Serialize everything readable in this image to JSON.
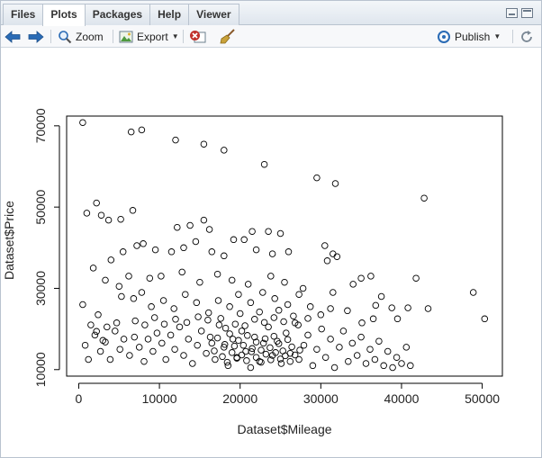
{
  "tabs": [
    {
      "label": "Files",
      "active": false
    },
    {
      "label": "Plots",
      "active": true
    },
    {
      "label": "Packages",
      "active": false
    },
    {
      "label": "Help",
      "active": false
    },
    {
      "label": "Viewer",
      "active": false
    }
  ],
  "toolbar": {
    "zoom_label": "Zoom",
    "export_label": "Export",
    "publish_label": "Publish"
  },
  "colors": {
    "accent": "#2a6bb5",
    "clear": "#c0312b",
    "broom": "#c9a23a"
  },
  "chart_data": {
    "type": "scatter",
    "xlabel": "Dataset$Mileage",
    "ylabel": "Dataset$Price",
    "xlim": [
      -1500,
      52500
    ],
    "ylim": [
      8400,
      72400
    ],
    "x_ticks": [
      0,
      10000,
      20000,
      30000,
      40000,
      50000
    ],
    "y_ticks": [
      10000,
      30000,
      50000,
      70000
    ],
    "marker": "open-circle",
    "grid": false,
    "points": [
      [
        500,
        70800
      ],
      [
        6500,
        68500
      ],
      [
        7800,
        69000
      ],
      [
        12000,
        66500
      ],
      [
        15500,
        65500
      ],
      [
        18000,
        64000
      ],
      [
        23000,
        60500
      ],
      [
        29500,
        57200
      ],
      [
        31800,
        55800
      ],
      [
        42800,
        52200
      ],
      [
        1000,
        48500
      ],
      [
        2200,
        51000
      ],
      [
        2800,
        48000
      ],
      [
        3700,
        46800
      ],
      [
        5200,
        47000
      ],
      [
        6700,
        49200
      ],
      [
        12200,
        45000
      ],
      [
        13800,
        45500
      ],
      [
        15500,
        46800
      ],
      [
        16200,
        44500
      ],
      [
        19200,
        42000
      ],
      [
        20500,
        42000
      ],
      [
        21500,
        44000
      ],
      [
        23500,
        44000
      ],
      [
        25000,
        43500
      ],
      [
        1800,
        35000
      ],
      [
        4000,
        37000
      ],
      [
        5500,
        39000
      ],
      [
        7200,
        40500
      ],
      [
        8000,
        41000
      ],
      [
        9500,
        39500
      ],
      [
        11500,
        39000
      ],
      [
        13000,
        40000
      ],
      [
        14500,
        41500
      ],
      [
        16500,
        39000
      ],
      [
        18000,
        38000
      ],
      [
        22000,
        39500
      ],
      [
        24000,
        38500
      ],
      [
        26000,
        39000
      ],
      [
        30500,
        40500
      ],
      [
        31500,
        38500
      ],
      [
        32000,
        37800
      ],
      [
        30800,
        36800
      ],
      [
        3300,
        32000
      ],
      [
        5000,
        30500
      ],
      [
        6200,
        33000
      ],
      [
        8800,
        32500
      ],
      [
        10200,
        33000
      ],
      [
        12800,
        34000
      ],
      [
        15000,
        31500
      ],
      [
        17200,
        33500
      ],
      [
        19000,
        32000
      ],
      [
        21000,
        31000
      ],
      [
        23800,
        33000
      ],
      [
        25500,
        31500
      ],
      [
        27800,
        30000
      ],
      [
        31500,
        29000
      ],
      [
        34000,
        31000
      ],
      [
        35000,
        32500
      ],
      [
        36200,
        33000
      ],
      [
        37500,
        28000
      ],
      [
        41800,
        32500
      ],
      [
        48900,
        29000
      ],
      [
        50300,
        22500
      ],
      [
        36800,
        25800
      ],
      [
        38800,
        25200
      ],
      [
        40800,
        25200
      ],
      [
        43300,
        25000
      ],
      [
        39500,
        22500
      ],
      [
        500,
        26000
      ],
      [
        1500,
        21000
      ],
      [
        2400,
        23500
      ],
      [
        3500,
        20500
      ],
      [
        4700,
        21500
      ],
      [
        5300,
        28000
      ],
      [
        6800,
        27500
      ],
      [
        7800,
        29000
      ],
      [
        9000,
        25500
      ],
      [
        10500,
        27000
      ],
      [
        11800,
        25000
      ],
      [
        13200,
        28500
      ],
      [
        14600,
        26500
      ],
      [
        16100,
        24000
      ],
      [
        17300,
        27000
      ],
      [
        18700,
        25500
      ],
      [
        19800,
        28500
      ],
      [
        21300,
        26500
      ],
      [
        22800,
        29000
      ],
      [
        24300,
        27500
      ],
      [
        25900,
        26000
      ],
      [
        27300,
        28500
      ],
      [
        28700,
        25500
      ],
      [
        30000,
        23500
      ],
      [
        31200,
        25000
      ],
      [
        33300,
        24500
      ],
      [
        35100,
        21500
      ],
      [
        36500,
        22500
      ],
      [
        800,
        16000
      ],
      [
        1200,
        12500
      ],
      [
        2000,
        18500
      ],
      [
        2700,
        14500
      ],
      [
        3300,
        16800
      ],
      [
        3900,
        12500
      ],
      [
        4500,
        19500
      ],
      [
        5100,
        15000
      ],
      [
        5600,
        17500
      ],
      [
        6300,
        13500
      ],
      [
        6900,
        18000
      ],
      [
        7500,
        15500
      ],
      [
        8100,
        12000
      ],
      [
        8600,
        17500
      ],
      [
        9200,
        14500
      ],
      [
        9700,
        19000
      ],
      [
        10300,
        16500
      ],
      [
        10800,
        12500
      ],
      [
        11400,
        18500
      ],
      [
        11900,
        15000
      ],
      [
        12500,
        20500
      ],
      [
        13000,
        13500
      ],
      [
        13600,
        17500
      ],
      [
        14100,
        11500
      ],
      [
        14700,
        16000
      ],
      [
        15200,
        19500
      ],
      [
        15800,
        14000
      ],
      [
        16300,
        18000
      ],
      [
        16900,
        12500
      ],
      [
        17400,
        21000
      ],
      [
        18000,
        15500
      ],
      [
        18500,
        11000
      ],
      [
        19100,
        17500
      ],
      [
        19600,
        13000
      ],
      [
        20200,
        19500
      ],
      [
        20700,
        14500
      ],
      [
        21300,
        10500
      ],
      [
        21800,
        18000
      ],
      [
        22400,
        12000
      ],
      [
        22900,
        16500
      ],
      [
        23500,
        20500
      ],
      [
        24000,
        13500
      ],
      [
        24600,
        17000
      ],
      [
        25100,
        11500
      ],
      [
        25700,
        19000
      ],
      [
        26200,
        14000
      ],
      [
        26800,
        21500
      ],
      [
        27300,
        12500
      ],
      [
        27900,
        16000
      ],
      [
        28400,
        18500
      ],
      [
        29000,
        11000
      ],
      [
        29500,
        15000
      ],
      [
        30100,
        20000
      ],
      [
        30600,
        13000
      ],
      [
        31200,
        17500
      ],
      [
        31700,
        10500
      ],
      [
        32300,
        15500
      ],
      [
        32800,
        19500
      ],
      [
        33400,
        12000
      ],
      [
        33900,
        16500
      ],
      [
        34500,
        13500
      ],
      [
        35000,
        18000
      ],
      [
        35600,
        11500
      ],
      [
        36100,
        15000
      ],
      [
        36700,
        12500
      ],
      [
        37200,
        17000
      ],
      [
        37800,
        11000
      ],
      [
        38300,
        14500
      ],
      [
        38900,
        10500
      ],
      [
        39400,
        13000
      ],
      [
        40000,
        11500
      ],
      [
        40600,
        15500
      ],
      [
        41100,
        11000
      ],
      [
        16500,
        16500
      ],
      [
        17200,
        17800
      ],
      [
        18100,
        16200
      ],
      [
        18700,
        18800
      ],
      [
        19300,
        15800
      ],
      [
        19800,
        17200
      ],
      [
        20400,
        16000
      ],
      [
        20900,
        18400
      ],
      [
        21500,
        15200
      ],
      [
        22000,
        16800
      ],
      [
        22600,
        14800
      ],
      [
        23100,
        17600
      ],
      [
        23700,
        15400
      ],
      [
        24200,
        18200
      ],
      [
        24800,
        16400
      ],
      [
        25300,
        14600
      ],
      [
        25900,
        17400
      ],
      [
        26400,
        15600
      ],
      [
        19000,
        14200
      ],
      [
        19600,
        12800
      ],
      [
        20200,
        13600
      ],
      [
        20800,
        12200
      ],
      [
        21400,
        14400
      ],
      [
        22000,
        13000
      ],
      [
        22600,
        11800
      ],
      [
        23200,
        13800
      ],
      [
        23800,
        12400
      ],
      [
        24400,
        14200
      ],
      [
        25000,
        12600
      ],
      [
        25600,
        13400
      ],
      [
        17800,
        13200
      ],
      [
        18400,
        11800
      ],
      [
        16800,
        14600
      ],
      [
        26200,
        12000
      ],
      [
        26800,
        13600
      ],
      [
        27400,
        14800
      ],
      [
        18200,
        20200
      ],
      [
        19400,
        21200
      ],
      [
        20600,
        20800
      ],
      [
        21800,
        22400
      ],
      [
        23000,
        21600
      ],
      [
        24200,
        22800
      ],
      [
        25400,
        21800
      ],
      [
        26600,
        23200
      ],
      [
        17600,
        22600
      ],
      [
        20000,
        23800
      ],
      [
        22400,
        24200
      ],
      [
        24800,
        24600
      ],
      [
        27200,
        21000
      ],
      [
        28400,
        22600
      ],
      [
        16000,
        22200
      ],
      [
        14800,
        23000
      ],
      [
        13400,
        21600
      ],
      [
        12000,
        22400
      ],
      [
        10600,
        21200
      ],
      [
        9400,
        22800
      ],
      [
        8200,
        21000
      ],
      [
        7000,
        22000
      ],
      [
        2200,
        19400
      ],
      [
        3000,
        17200
      ]
    ]
  }
}
